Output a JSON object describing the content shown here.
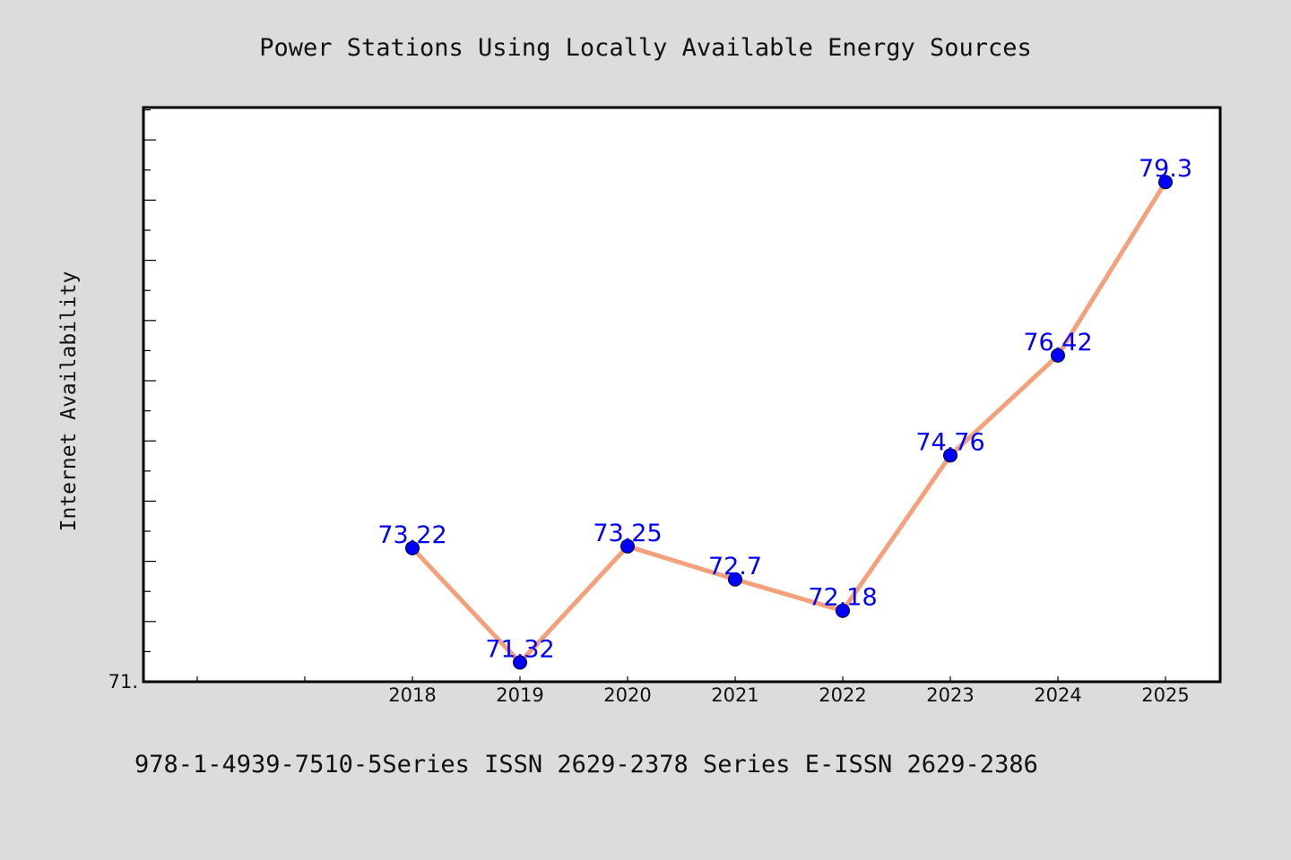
{
  "chart_data": {
    "type": "line",
    "title": "Power Stations Using Locally Available Energy Sources",
    "ylabel": "Internet Availability",
    "xlabel": "",
    "categories": [
      "2018",
      "2019",
      "2020",
      "2021",
      "2022",
      "2023",
      "2024",
      "2025"
    ],
    "series": [
      {
        "values": [
          73.22,
          71.32,
          73.25,
          72.7,
          72.18,
          74.76,
          76.42,
          79.3
        ],
        "labels": [
          "73.22",
          "71.32",
          "73.25",
          "72.7",
          "72.18",
          "74.76",
          "76.42",
          "79.3"
        ],
        "line_color": "#f4a07a",
        "marker_color": "#0000ff"
      }
    ],
    "y_tick_label": "71.",
    "ylim": [
      71.0,
      80.5
    ],
    "grid": false,
    "legend": "none"
  },
  "footer": {
    "text": "978-1-4939-7510-5Series ISSN 2629-2378 Series E-ISSN 2629-2386"
  },
  "colors": {
    "background": "#dcdcdc",
    "plot_background": "#ffffff",
    "axis": "#000000"
  }
}
